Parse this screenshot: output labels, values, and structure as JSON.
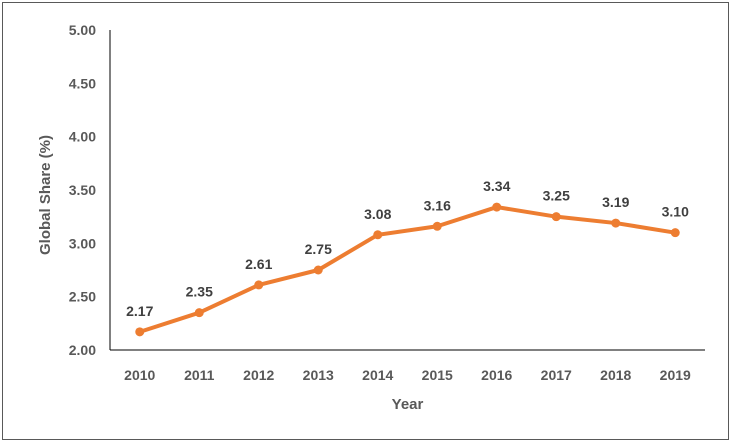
{
  "chart_data": {
    "type": "line",
    "title": "",
    "xlabel": "Year",
    "ylabel": "Global Share (%)",
    "x": [
      "2010",
      "2011",
      "2012",
      "2013",
      "2014",
      "2015",
      "2016",
      "2017",
      "2018",
      "2019"
    ],
    "series": [
      {
        "values": [
          2.17,
          2.35,
          2.61,
          2.75,
          3.08,
          3.16,
          3.34,
          3.25,
          3.19,
          3.1
        ],
        "labels": [
          "2.17",
          "2.35",
          "2.61",
          "2.75",
          "3.08",
          "3.16",
          "3.34",
          "3.25",
          "3.19",
          "3.10"
        ],
        "color": "#ED7D31"
      }
    ],
    "ylim": [
      2.0,
      5.0
    ],
    "yticks": [
      "2.00",
      "2.50",
      "3.00",
      "3.50",
      "4.00",
      "4.50",
      "5.00"
    ],
    "grid": false,
    "legend": "none"
  }
}
